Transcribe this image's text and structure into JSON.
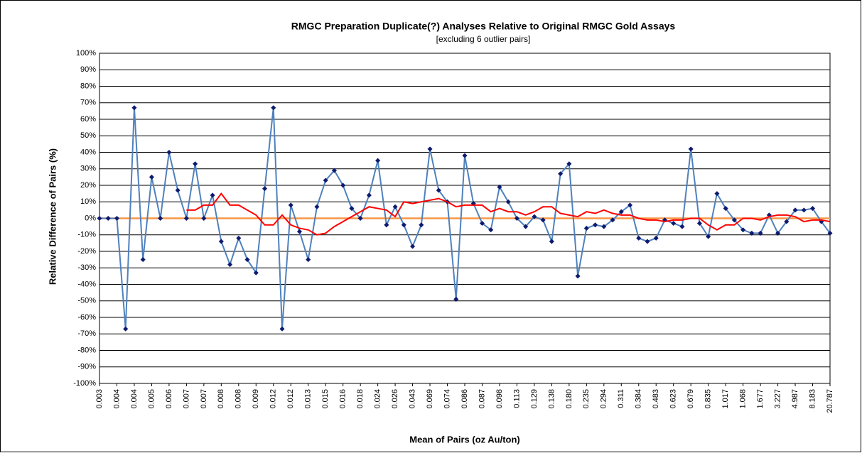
{
  "chart_data": {
    "type": "line",
    "title": "RMGC Preparation Duplicate(?) Analyses Relative to Original RMGC Gold Assays",
    "subtitle": "[excluding 6 outlier pairs]",
    "xlabel": "Mean of Pairs (oz Au/ton)",
    "ylabel": "Relative Difference of Pairs (%)",
    "categories": [
      "0.003",
      null,
      "0.004",
      null,
      "0.004",
      null,
      "0.005",
      null,
      "0.006",
      null,
      "0.007",
      null,
      "0.007",
      null,
      "0.008",
      null,
      "0.008",
      null,
      "0.009",
      null,
      "0.012",
      null,
      "0.012",
      null,
      "0.013",
      null,
      "0.015",
      null,
      "0.016",
      null,
      "0.018",
      null,
      "0.024",
      null,
      "0.026",
      null,
      "0.043",
      null,
      "0.069",
      null,
      "0.074",
      null,
      "0.086",
      null,
      "0.087",
      null,
      "0.098",
      null,
      "0.113",
      null,
      "0.129",
      null,
      "0.138",
      null,
      "0.180",
      null,
      "0.235",
      null,
      "0.294",
      null,
      "0.311",
      null,
      "0.384",
      null,
      "0.483",
      null,
      "0.623",
      null,
      "0.679",
      null,
      "0.835",
      null,
      "1.017",
      null,
      "1.068",
      null,
      "1.677",
      null,
      "3.227",
      null,
      "4.987",
      null,
      "8.183",
      null,
      "20.787"
    ],
    "series": [
      {
        "color": "#4f81bd",
        "marker_color": "#0d1a6e",
        "values": [
          0,
          0,
          0,
          -67,
          67,
          -25,
          25,
          0,
          40,
          17,
          0,
          33,
          0,
          14,
          -14,
          -28,
          -12,
          -25,
          -33,
          18,
          67,
          -67,
          8,
          -8,
          -25,
          7,
          23,
          29,
          20,
          6,
          0,
          14,
          35,
          -4,
          7,
          -4,
          -17,
          -4,
          42,
          17,
          10,
          -49,
          38,
          9,
          -3,
          -7,
          19,
          10,
          0,
          -5,
          1,
          -1,
          -14,
          27,
          33,
          -35,
          -6,
          -4,
          -5,
          -1,
          4,
          8,
          -12,
          -14,
          -12,
          -1,
          -3,
          -5,
          42,
          -3,
          -11,
          15,
          6,
          -1,
          -7,
          -9,
          -9,
          2,
          -9,
          -2,
          5,
          5,
          6,
          -2,
          -9
        ]
      },
      {
        "color": "#ff0000",
        "values": [
          null,
          null,
          null,
          null,
          null,
          null,
          null,
          null,
          null,
          null,
          5,
          5,
          8,
          8,
          15,
          8,
          8,
          5,
          2,
          -4,
          -4,
          2,
          -4,
          -6,
          -7,
          -10,
          -9,
          -5,
          -2,
          1,
          4,
          7,
          6,
          5,
          1,
          10,
          9,
          10,
          11,
          12,
          10,
          7,
          8,
          8,
          8,
          4,
          6,
          4,
          4,
          2,
          4,
          7,
          7,
          3,
          2,
          1,
          4,
          3,
          5,
          3,
          2,
          2,
          0,
          -1,
          -1,
          -2,
          -1,
          -1,
          0,
          0,
          -4,
          -7,
          -4,
          -4,
          0,
          0,
          -1,
          1,
          2,
          2,
          1,
          -2,
          -1,
          -1,
          -2
        ]
      }
    ],
    "hline": {
      "value": 0,
      "color": "#f79646"
    },
    "ylim": [
      -100,
      100
    ],
    "yticks": [
      {
        "value": -100,
        "label": "-100%"
      },
      {
        "value": -90,
        "label": "-90%"
      },
      {
        "value": -80,
        "label": "-80%"
      },
      {
        "value": -70,
        "label": "-70%"
      },
      {
        "value": -60,
        "label": "-60%"
      },
      {
        "value": -50,
        "label": "-50%"
      },
      {
        "value": -40,
        "label": "-40%"
      },
      {
        "value": -30,
        "label": "-30%"
      },
      {
        "value": -20,
        "label": "-20%"
      },
      {
        "value": -10,
        "label": "-10%"
      },
      {
        "value": 0,
        "label": "0%"
      },
      {
        "value": 10,
        "label": "10%"
      },
      {
        "value": 20,
        "label": "20%"
      },
      {
        "value": 30,
        "label": "30%"
      },
      {
        "value": 40,
        "label": "40%"
      },
      {
        "value": 50,
        "label": "50%"
      },
      {
        "value": 60,
        "label": "60%"
      },
      {
        "value": 70,
        "label": "70%"
      },
      {
        "value": 80,
        "label": "80%"
      },
      {
        "value": 90,
        "label": "90%"
      },
      {
        "value": 100,
        "label": "100%"
      }
    ],
    "grid": true
  }
}
